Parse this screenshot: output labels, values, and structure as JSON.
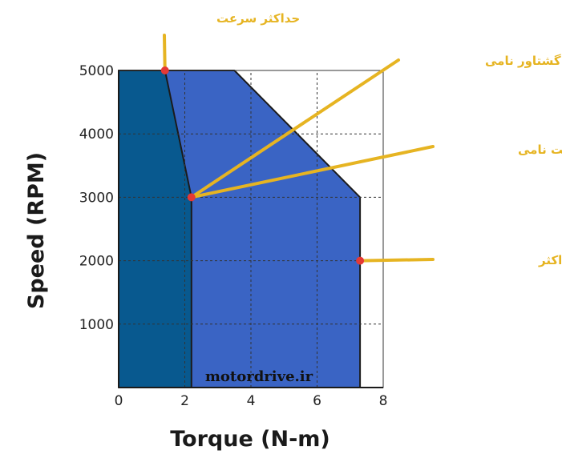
{
  "chart_data": {
    "type": "area",
    "xlabel": "Torque (N-m)",
    "ylabel": "Speed (RPM)",
    "xlim": [
      0,
      8
    ],
    "ylim": [
      0,
      5000
    ],
    "x_ticks": [
      "0",
      "2",
      "4",
      "6",
      "8"
    ],
    "y_ticks": [
      "1000",
      "2000",
      "3000",
      "4000",
      "5000"
    ],
    "grid": true,
    "regions": [
      {
        "points": [
          [
            0,
            0
          ],
          [
            0,
            5000
          ],
          [
            3.5,
            5000
          ],
          [
            7.3,
            3000
          ],
          [
            7.3,
            0
          ]
        ],
        "color": "#3a64c4"
      },
      {
        "points": [
          [
            0,
            0
          ],
          [
            0,
            5000
          ],
          [
            1.4,
            5000
          ],
          [
            2.2,
            3000
          ],
          [
            2.2,
            0
          ]
        ],
        "color": "#08598f"
      }
    ],
    "markers": [
      {
        "x": 1.4,
        "y": 5000,
        "label": "حداکثر سرعت"
      },
      {
        "x": 2.2,
        "y": 3000,
        "label": "گشتاور نامی"
      },
      {
        "x": 2.2,
        "y": 3000,
        "label": "سرعت نامی"
      },
      {
        "x": 7.3,
        "y": 2000,
        "label": "گشتاور حداکثر"
      }
    ],
    "colors": {
      "marker": "#e53935",
      "annotation": "#e6b422",
      "grid": "#333333"
    }
  },
  "watermark": "motordrive.ir"
}
